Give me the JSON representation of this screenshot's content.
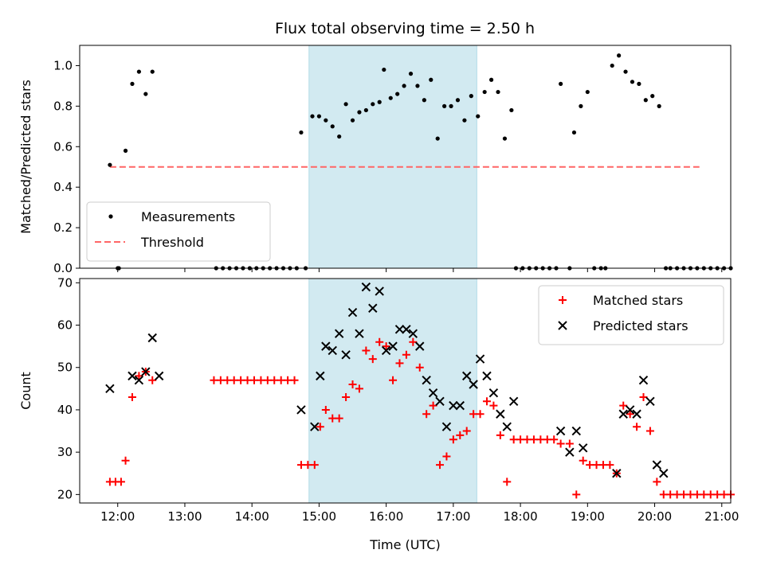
{
  "figure": {
    "title": "Flux total observing time = 2.50 h",
    "shaded_interval": [
      "14:51",
      "17:21"
    ],
    "shade_color": "#add8e6"
  },
  "chart_data": [
    {
      "type": "scatter",
      "panel": "top",
      "ylabel": "Matched/Predicted stars",
      "xlabel": "",
      "xlim": [
        "11:26",
        "21:08"
      ],
      "ylim": [
        0,
        1.1
      ],
      "yticks": [
        "0.0",
        "0.2",
        "0.4",
        "0.6",
        "0.8",
        "1.0"
      ],
      "legend_position": "lower left",
      "series": [
        {
          "name": "Measurements",
          "marker": "dot",
          "color": "#000000",
          "points": [
            [
              "11:53",
              0.51
            ],
            [
              "12:00",
              0.0
            ],
            [
              "12:01",
              0.0
            ],
            [
              "12:07",
              0.58
            ],
            [
              "12:13",
              0.91
            ],
            [
              "12:19",
              0.97
            ],
            [
              "12:25",
              0.86
            ],
            [
              "12:31",
              0.97
            ],
            [
              "13:28",
              0.0
            ],
            [
              "13:34",
              0.0
            ],
            [
              "13:40",
              0.0
            ],
            [
              "13:46",
              0.0
            ],
            [
              "13:52",
              0.0
            ],
            [
              "13:58",
              0.0
            ],
            [
              "14:04",
              0.0
            ],
            [
              "14:10",
              0.0
            ],
            [
              "14:16",
              0.0
            ],
            [
              "14:22",
              0.0
            ],
            [
              "14:28",
              0.0
            ],
            [
              "14:34",
              0.0
            ],
            [
              "14:40",
              0.0
            ],
            [
              "14:44",
              0.67
            ],
            [
              "14:48",
              0.0
            ],
            [
              "14:54",
              0.75
            ],
            [
              "15:00",
              0.75
            ],
            [
              "15:06",
              0.73
            ],
            [
              "15:12",
              0.7
            ],
            [
              "15:18",
              0.65
            ],
            [
              "15:24",
              0.81
            ],
            [
              "15:30",
              0.73
            ],
            [
              "15:36",
              0.77
            ],
            [
              "15:42",
              0.78
            ],
            [
              "15:48",
              0.81
            ],
            [
              "15:54",
              0.82
            ],
            [
              "15:58",
              0.98
            ],
            [
              "16:04",
              0.84
            ],
            [
              "16:10",
              0.86
            ],
            [
              "16:16",
              0.9
            ],
            [
              "16:22",
              0.96
            ],
            [
              "16:28",
              0.9
            ],
            [
              "16:34",
              0.83
            ],
            [
              "16:40",
              0.93
            ],
            [
              "16:46",
              0.64
            ],
            [
              "16:52",
              0.8
            ],
            [
              "16:58",
              0.8
            ],
            [
              "17:04",
              0.83
            ],
            [
              "17:10",
              0.73
            ],
            [
              "17:16",
              0.85
            ],
            [
              "17:22",
              0.75
            ],
            [
              "17:28",
              0.87
            ],
            [
              "17:34",
              0.93
            ],
            [
              "17:40",
              0.87
            ],
            [
              "17:46",
              0.64
            ],
            [
              "17:52",
              0.78
            ],
            [
              "17:56",
              0.0
            ],
            [
              "18:02",
              0.0
            ],
            [
              "18:08",
              0.0
            ],
            [
              "18:14",
              0.0
            ],
            [
              "18:20",
              0.0
            ],
            [
              "18:26",
              0.0
            ],
            [
              "18:32",
              0.0
            ],
            [
              "18:36",
              0.91
            ],
            [
              "18:44",
              0.0
            ],
            [
              "18:48",
              0.67
            ],
            [
              "18:54",
              0.8
            ],
            [
              "19:00",
              0.87
            ],
            [
              "19:06",
              0.0
            ],
            [
              "19:12",
              0.0
            ],
            [
              "19:16",
              0.0
            ],
            [
              "19:22",
              1.0
            ],
            [
              "19:28",
              1.05
            ],
            [
              "19:34",
              0.97
            ],
            [
              "19:40",
              0.92
            ],
            [
              "19:46",
              0.91
            ],
            [
              "19:52",
              0.83
            ],
            [
              "19:58",
              0.85
            ],
            [
              "20:04",
              0.8
            ],
            [
              "20:10",
              0.0
            ],
            [
              "20:14",
              0.0
            ],
            [
              "20:20",
              0.0
            ],
            [
              "20:26",
              0.0
            ],
            [
              "20:32",
              0.0
            ],
            [
              "20:38",
              0.0
            ],
            [
              "20:44",
              0.0
            ],
            [
              "20:50",
              0.0
            ],
            [
              "20:56",
              0.0
            ],
            [
              "21:02",
              0.0
            ],
            [
              "21:08",
              0.0
            ]
          ]
        }
      ],
      "lines": [
        {
          "name": "Threshold",
          "style": "dashed",
          "color": "#ff6666",
          "x": [
            "11:53",
            "20:40"
          ],
          "y": [
            0.5,
            0.5
          ]
        }
      ]
    },
    {
      "type": "scatter",
      "panel": "bottom",
      "ylabel": "Count",
      "xlabel": "Time (UTC)",
      "xlim": [
        "11:26",
        "21:08"
      ],
      "ylim": [
        18,
        71
      ],
      "yticks": [
        "20",
        "30",
        "40",
        "50",
        "60",
        "70"
      ],
      "xticks": [
        "12:00",
        "13:00",
        "14:00",
        "15:00",
        "16:00",
        "17:00",
        "18:00",
        "19:00",
        "20:00",
        "21:00"
      ],
      "legend_position": "upper right",
      "series": [
        {
          "name": "Matched stars",
          "marker": "plus",
          "color": "#ff0000",
          "points": [
            [
              "11:53",
              23
            ],
            [
              "11:58",
              23
            ],
            [
              "12:03",
              23
            ],
            [
              "12:07",
              28
            ],
            [
              "12:13",
              43
            ],
            [
              "12:19",
              48
            ],
            [
              "12:25",
              49
            ],
            [
              "12:31",
              47
            ],
            [
              "13:26",
              47
            ],
            [
              "13:32",
              47
            ],
            [
              "13:38",
              47
            ],
            [
              "13:44",
              47
            ],
            [
              "13:50",
              47
            ],
            [
              "13:56",
              47
            ],
            [
              "14:02",
              47
            ],
            [
              "14:08",
              47
            ],
            [
              "14:14",
              47
            ],
            [
              "14:20",
              47
            ],
            [
              "14:26",
              47
            ],
            [
              "14:32",
              47
            ],
            [
              "14:38",
              47
            ],
            [
              "14:44",
              27
            ],
            [
              "14:50",
              27
            ],
            [
              "14:56",
              27
            ],
            [
              "15:01",
              36
            ],
            [
              "15:06",
              40
            ],
            [
              "15:12",
              38
            ],
            [
              "15:18",
              38
            ],
            [
              "15:24",
              43
            ],
            [
              "15:30",
              46
            ],
            [
              "15:36",
              45
            ],
            [
              "15:42",
              54
            ],
            [
              "15:48",
              52
            ],
            [
              "15:54",
              56
            ],
            [
              "16:00",
              55
            ],
            [
              "16:06",
              47
            ],
            [
              "16:12",
              51
            ],
            [
              "16:18",
              53
            ],
            [
              "16:24",
              56
            ],
            [
              "16:30",
              50
            ],
            [
              "16:36",
              39
            ],
            [
              "16:42",
              41
            ],
            [
              "16:48",
              27
            ],
            [
              "16:54",
              29
            ],
            [
              "17:00",
              33
            ],
            [
              "17:06",
              34
            ],
            [
              "17:12",
              35
            ],
            [
              "17:18",
              39
            ],
            [
              "17:24",
              39
            ],
            [
              "17:30",
              42
            ],
            [
              "17:36",
              41
            ],
            [
              "17:42",
              34
            ],
            [
              "17:48",
              23
            ],
            [
              "17:54",
              33
            ],
            [
              "18:00",
              33
            ],
            [
              "18:06",
              33
            ],
            [
              "18:12",
              33
            ],
            [
              "18:18",
              33
            ],
            [
              "18:24",
              33
            ],
            [
              "18:30",
              33
            ],
            [
              "18:36",
              32
            ],
            [
              "18:44",
              32
            ],
            [
              "18:50",
              20
            ],
            [
              "18:56",
              28
            ],
            [
              "19:02",
              27
            ],
            [
              "19:08",
              27
            ],
            [
              "19:14",
              27
            ],
            [
              "19:20",
              27
            ],
            [
              "19:26",
              25
            ],
            [
              "19:32",
              41
            ],
            [
              "19:38",
              39
            ],
            [
              "19:44",
              36
            ],
            [
              "19:50",
              43
            ],
            [
              "19:56",
              35
            ],
            [
              "20:02",
              23
            ],
            [
              "20:08",
              20
            ],
            [
              "20:14",
              20
            ],
            [
              "20:20",
              20
            ],
            [
              "20:26",
              20
            ],
            [
              "20:32",
              20
            ],
            [
              "20:38",
              20
            ],
            [
              "20:44",
              20
            ],
            [
              "20:50",
              20
            ],
            [
              "20:56",
              20
            ],
            [
              "21:02",
              20
            ],
            [
              "21:08",
              20
            ]
          ]
        },
        {
          "name": "Predicted stars",
          "marker": "x",
          "color": "#000000",
          "points": [
            [
              "11:53",
              45
            ],
            [
              "12:13",
              48
            ],
            [
              "12:19",
              47
            ],
            [
              "12:25",
              49
            ],
            [
              "12:31",
              57
            ],
            [
              "12:37",
              48
            ],
            [
              "14:44",
              40
            ],
            [
              "14:56",
              36
            ],
            [
              "15:01",
              48
            ],
            [
              "15:06",
              55
            ],
            [
              "15:12",
              54
            ],
            [
              "15:18",
              58
            ],
            [
              "15:24",
              53
            ],
            [
              "15:30",
              63
            ],
            [
              "15:36",
              58
            ],
            [
              "15:42",
              69
            ],
            [
              "15:48",
              64
            ],
            [
              "15:54",
              68
            ],
            [
              "16:00",
              54
            ],
            [
              "16:06",
              55
            ],
            [
              "16:12",
              59
            ],
            [
              "16:18",
              59
            ],
            [
              "16:24",
              58
            ],
            [
              "16:30",
              55
            ],
            [
              "16:36",
              47
            ],
            [
              "16:42",
              44
            ],
            [
              "16:48",
              42
            ],
            [
              "16:54",
              36
            ],
            [
              "17:00",
              41
            ],
            [
              "17:06",
              41
            ],
            [
              "17:12",
              48
            ],
            [
              "17:18",
              46
            ],
            [
              "17:24",
              52
            ],
            [
              "17:30",
              48
            ],
            [
              "17:36",
              44
            ],
            [
              "17:42",
              39
            ],
            [
              "17:48",
              36
            ],
            [
              "17:54",
              42
            ],
            [
              "18:36",
              35
            ],
            [
              "18:44",
              30
            ],
            [
              "18:50",
              35
            ],
            [
              "18:56",
              31
            ],
            [
              "19:26",
              25
            ],
            [
              "19:32",
              39
            ],
            [
              "19:38",
              40
            ],
            [
              "19:44",
              39
            ],
            [
              "19:50",
              47
            ],
            [
              "19:56",
              42
            ],
            [
              "20:02",
              27
            ],
            [
              "20:08",
              25
            ]
          ]
        }
      ]
    }
  ]
}
